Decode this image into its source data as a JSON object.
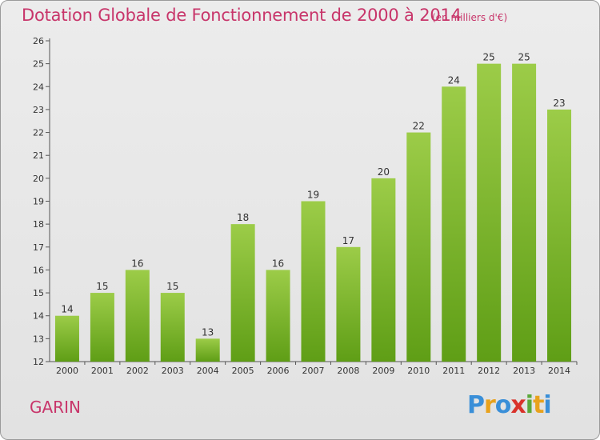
{
  "title": "Dotation Globale de Fonctionnement de 2000 à 2014",
  "subtitle": "(en milliers d'€)",
  "commune": "GARIN",
  "logo": {
    "letters": [
      "P",
      "r",
      "o",
      "x",
      "i",
      "t",
      "i"
    ],
    "colors": [
      "#3a8fd8",
      "#e8a21c",
      "#3a8fd8",
      "#d9322b",
      "#5aa83a",
      "#e8a21c",
      "#3a8fd8"
    ]
  },
  "chart_data": {
    "type": "bar",
    "categories": [
      "2000",
      "2001",
      "2002",
      "2003",
      "2004",
      "2005",
      "2006",
      "2007",
      "2008",
      "2009",
      "2010",
      "2011",
      "2012",
      "2013",
      "2014"
    ],
    "values": [
      14,
      15,
      16,
      15,
      13,
      18,
      16,
      19,
      17,
      20,
      22,
      24,
      25,
      25,
      23
    ],
    "ylim": [
      12,
      26
    ],
    "yticks": [
      12,
      13,
      14,
      15,
      16,
      17,
      18,
      19,
      20,
      21,
      22,
      23,
      24,
      25,
      26
    ],
    "grid": false,
    "colors": {
      "bar_top": "#9ccc48",
      "bar_bottom": "#5f9e16",
      "axis": "#555555",
      "title": "#c8356a"
    }
  }
}
